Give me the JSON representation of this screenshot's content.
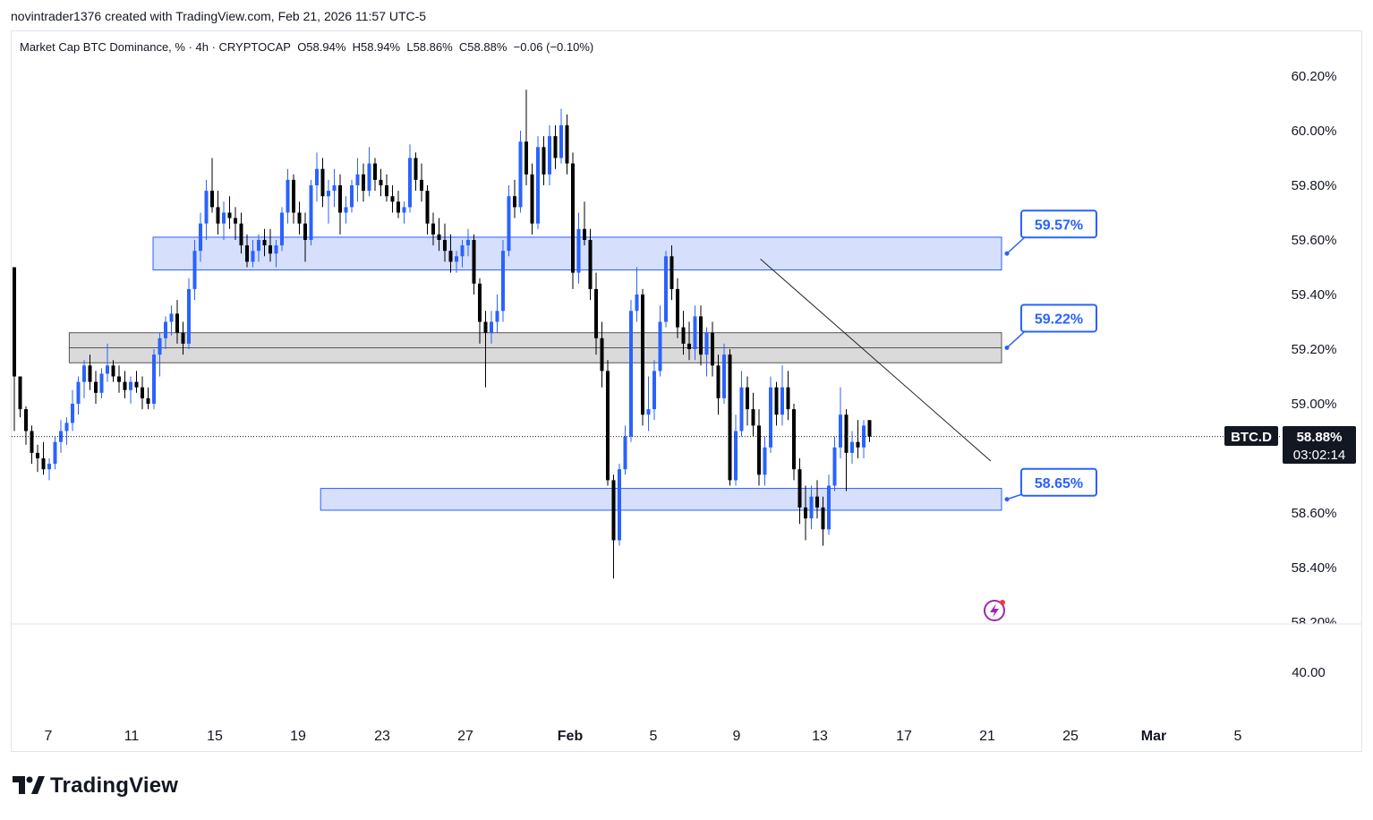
{
  "header": {
    "text": "novintrader1376 created with TradingView.com, Feb 21, 2026 11:57 UTC-5"
  },
  "legend": {
    "title": "Market Cap BTC Dominance, % · 4h · CRYPTOCAP",
    "open": "O58.94%",
    "high": "H58.94%",
    "low": "L58.86%",
    "close": "C58.88%",
    "change": "−0.06 (−0.10%)"
  },
  "footer": {
    "logo_text": "TradingView"
  },
  "colors": {
    "up": "#2962ff",
    "down": "#000000",
    "zone_blue": "#d1dcfb",
    "zone_blue_border": "#2962ff",
    "zone_gray": "#d6d6d6",
    "callout": "#2962ff"
  },
  "chart_data": {
    "type": "candlestick",
    "symbol": "BTC.D",
    "last_price_label": "58.88%",
    "countdown_label": "03:02:14",
    "y_ticks": [
      "60.20%",
      "60.00%",
      "59.80%",
      "59.60%",
      "59.40%",
      "59.20%",
      "59.00%",
      "58.80%",
      "58.60%",
      "58.40%",
      "58.20%"
    ],
    "y_values": [
      60.2,
      60.0,
      59.8,
      59.6,
      59.4,
      59.2,
      59.0,
      58.8,
      58.6,
      58.4,
      58.2
    ],
    "ylim": [
      58.2,
      60.2
    ],
    "x_ticks": [
      "7",
      "11",
      "15",
      "19",
      "23",
      "27",
      "Feb",
      "5",
      "9",
      "13",
      "17",
      "21",
      "25",
      "Mar",
      "5"
    ],
    "lower_pane_label": "40.00",
    "zones": [
      {
        "label": "59.57%",
        "low": 59.49,
        "high": 59.61,
        "from": "Jan 12",
        "to": "Feb 21",
        "color": "blue"
      },
      {
        "label": "59.22%",
        "low": 59.15,
        "high": 59.26,
        "from": "Jan 8",
        "to": "Feb 21",
        "color": "gray"
      },
      {
        "label": "58.65%",
        "low": 58.61,
        "high": 58.69,
        "from": "Jan 20",
        "to": "Feb 21",
        "color": "blue"
      }
    ],
    "trendline": {
      "from_date": "Feb 10",
      "from_value": 59.53,
      "to_date": "Feb 21",
      "to_value": 58.79
    },
    "candles": [
      [
        59.5,
        59.5,
        58.9,
        59.1
      ],
      [
        59.1,
        59.1,
        58.95,
        58.98
      ],
      [
        58.98,
        58.99,
        58.85,
        58.9
      ],
      [
        58.9,
        58.92,
        58.78,
        58.82
      ],
      [
        58.82,
        58.85,
        58.75,
        58.8
      ],
      [
        58.8,
        58.86,
        58.74,
        58.76
      ],
      [
        58.76,
        58.8,
        58.72,
        58.78
      ],
      [
        58.78,
        58.88,
        58.76,
        58.86
      ],
      [
        58.86,
        58.94,
        58.82,
        58.9
      ],
      [
        58.9,
        58.95,
        58.85,
        58.93
      ],
      [
        58.93,
        59.05,
        58.9,
        59.0
      ],
      [
        59.0,
        59.1,
        58.96,
        59.08
      ],
      [
        59.08,
        59.16,
        59.02,
        59.14
      ],
      [
        59.14,
        59.18,
        59.05,
        59.08
      ],
      [
        59.08,
        59.12,
        59.0,
        59.04
      ],
      [
        59.04,
        59.13,
        59.02,
        59.11
      ],
      [
        59.11,
        59.22,
        59.08,
        59.14
      ],
      [
        59.14,
        59.16,
        59.08,
        59.1
      ],
      [
        59.1,
        59.14,
        59.04,
        59.08
      ],
      [
        59.08,
        59.12,
        59.02,
        59.05
      ],
      [
        59.05,
        59.1,
        59.0,
        59.08
      ],
      [
        59.08,
        59.12,
        59.04,
        59.06
      ],
      [
        59.06,
        59.1,
        58.98,
        59.02
      ],
      [
        59.02,
        59.06,
        58.98,
        59.0
      ],
      [
        59.0,
        59.2,
        58.98,
        59.18
      ],
      [
        59.18,
        59.26,
        59.1,
        59.24
      ],
      [
        59.24,
        59.32,
        59.2,
        59.3
      ],
      [
        59.3,
        59.36,
        59.25,
        59.33
      ],
      [
        59.33,
        59.38,
        59.22,
        59.26
      ],
      [
        59.26,
        59.3,
        59.18,
        59.22
      ],
      [
        59.22,
        59.46,
        59.2,
        59.42
      ],
      [
        59.42,
        59.6,
        59.38,
        59.56
      ],
      [
        59.56,
        59.7,
        59.52,
        59.66
      ],
      [
        59.66,
        59.82,
        59.6,
        59.78
      ],
      [
        59.78,
        59.9,
        59.7,
        59.72
      ],
      [
        59.72,
        59.78,
        59.62,
        59.66
      ],
      [
        59.66,
        59.74,
        59.6,
        59.7
      ],
      [
        59.7,
        59.76,
        59.64,
        59.68
      ],
      [
        59.68,
        59.72,
        59.6,
        59.66
      ],
      [
        59.66,
        59.7,
        59.55,
        59.58
      ],
      [
        59.58,
        59.62,
        59.5,
        59.52
      ],
      [
        59.52,
        59.6,
        59.5,
        59.56
      ],
      [
        59.56,
        59.62,
        59.52,
        59.6
      ],
      [
        59.6,
        59.64,
        59.54,
        59.58
      ],
      [
        59.58,
        59.64,
        59.52,
        59.55
      ],
      [
        59.55,
        59.6,
        59.5,
        59.58
      ],
      [
        59.58,
        59.72,
        59.56,
        59.7
      ],
      [
        59.7,
        59.86,
        59.66,
        59.82
      ],
      [
        59.82,
        59.84,
        59.66,
        59.7
      ],
      [
        59.7,
        59.74,
        59.62,
        59.66
      ],
      [
        59.66,
        59.7,
        59.52,
        59.6
      ],
      [
        59.6,
        59.82,
        59.58,
        59.8
      ],
      [
        59.8,
        59.92,
        59.74,
        59.86
      ],
      [
        59.86,
        59.9,
        59.72,
        59.76
      ],
      [
        59.76,
        59.82,
        59.66,
        59.78
      ],
      [
        59.78,
        59.86,
        59.72,
        59.8
      ],
      [
        59.8,
        59.84,
        59.62,
        59.7
      ],
      [
        59.7,
        59.76,
        59.66,
        59.72
      ],
      [
        59.72,
        59.82,
        59.7,
        59.8
      ],
      [
        59.8,
        59.9,
        59.74,
        59.84
      ],
      [
        59.84,
        59.88,
        59.74,
        59.78
      ],
      [
        59.78,
        59.94,
        59.76,
        59.88
      ],
      [
        59.88,
        59.9,
        59.78,
        59.82
      ],
      [
        59.82,
        59.86,
        59.76,
        59.8
      ],
      [
        59.8,
        59.84,
        59.74,
        59.76
      ],
      [
        59.76,
        59.8,
        59.7,
        59.74
      ],
      [
        59.74,
        59.78,
        59.68,
        59.7
      ],
      [
        59.7,
        59.74,
        59.66,
        59.72
      ],
      [
        59.72,
        59.95,
        59.7,
        59.9
      ],
      [
        59.9,
        59.92,
        59.78,
        59.82
      ],
      [
        59.82,
        59.88,
        59.74,
        59.78
      ],
      [
        59.78,
        59.8,
        59.62,
        59.66
      ],
      [
        59.66,
        59.7,
        59.58,
        59.62
      ],
      [
        59.62,
        59.68,
        59.56,
        59.6
      ],
      [
        59.6,
        59.66,
        59.52,
        59.56
      ],
      [
        59.56,
        59.62,
        59.48,
        59.52
      ],
      [
        59.52,
        59.56,
        59.48,
        59.54
      ],
      [
        59.54,
        59.6,
        59.5,
        59.58
      ],
      [
        59.58,
        59.64,
        59.54,
        59.6
      ],
      [
        59.6,
        59.62,
        59.4,
        59.44
      ],
      [
        59.44,
        59.46,
        59.22,
        59.3
      ],
      [
        59.3,
        59.34,
        59.06,
        59.26
      ],
      [
        59.26,
        59.34,
        59.22,
        59.3
      ],
      [
        59.3,
        59.4,
        59.26,
        59.34
      ],
      [
        59.34,
        59.6,
        59.3,
        59.56
      ],
      [
        59.56,
        59.8,
        59.54,
        59.76
      ],
      [
        59.76,
        59.82,
        59.68,
        59.72
      ],
      [
        59.72,
        60.0,
        59.7,
        59.96
      ],
      [
        59.96,
        60.15,
        59.8,
        59.84
      ],
      [
        59.84,
        59.88,
        59.62,
        59.66
      ],
      [
        59.66,
        59.98,
        59.64,
        59.94
      ],
      [
        59.94,
        59.98,
        59.8,
        59.84
      ],
      [
        59.84,
        60.02,
        59.8,
        59.98
      ],
      [
        59.98,
        60.02,
        59.86,
        59.9
      ],
      [
        59.9,
        60.08,
        59.88,
        60.02
      ],
      [
        60.02,
        60.06,
        59.84,
        59.88
      ],
      [
        59.88,
        59.92,
        59.42,
        59.48
      ],
      [
        59.48,
        59.7,
        59.44,
        59.64
      ],
      [
        59.64,
        59.74,
        59.58,
        59.6
      ],
      [
        59.6,
        59.64,
        59.38,
        59.42
      ],
      [
        59.42,
        59.48,
        59.18,
        59.24
      ],
      [
        59.24,
        59.3,
        59.06,
        59.12
      ],
      [
        59.12,
        59.16,
        58.7,
        58.72
      ],
      [
        58.72,
        58.74,
        58.36,
        58.5
      ],
      [
        58.5,
        58.78,
        58.48,
        58.76
      ],
      [
        58.76,
        58.92,
        58.74,
        58.88
      ],
      [
        58.88,
        59.38,
        58.86,
        59.34
      ],
      [
        59.34,
        59.5,
        59.3,
        59.4
      ],
      [
        59.4,
        59.42,
        58.92,
        58.96
      ],
      [
        58.96,
        59.1,
        58.9,
        58.98
      ],
      [
        58.98,
        59.16,
        58.94,
        59.12
      ],
      [
        59.12,
        59.36,
        59.1,
        59.3
      ],
      [
        59.3,
        59.56,
        59.28,
        59.54
      ],
      [
        59.54,
        59.58,
        59.38,
        59.42
      ],
      [
        59.42,
        59.46,
        59.24,
        59.28
      ],
      [
        59.28,
        59.34,
        59.18,
        59.22
      ],
      [
        59.22,
        59.3,
        59.16,
        59.2
      ],
      [
        59.2,
        59.36,
        59.16,
        59.32
      ],
      [
        59.32,
        59.36,
        59.14,
        59.18
      ],
      [
        59.18,
        59.28,
        59.1,
        59.26
      ],
      [
        59.26,
        59.3,
        59.1,
        59.14
      ],
      [
        59.14,
        59.18,
        58.96,
        59.02
      ],
      [
        59.02,
        59.22,
        59.0,
        59.18
      ],
      [
        59.18,
        59.2,
        58.7,
        58.72
      ],
      [
        58.72,
        58.96,
        58.7,
        58.9
      ],
      [
        58.9,
        59.12,
        58.88,
        59.06
      ],
      [
        59.06,
        59.1,
        58.92,
        58.98
      ],
      [
        58.98,
        59.04,
        58.88,
        58.92
      ],
      [
        58.92,
        58.98,
        58.7,
        58.74
      ],
      [
        58.74,
        58.88,
        58.7,
        58.84
      ],
      [
        58.84,
        59.1,
        58.82,
        59.06
      ],
      [
        59.06,
        59.08,
        58.92,
        58.96
      ],
      [
        58.96,
        59.14,
        58.92,
        59.06
      ],
      [
        59.06,
        59.12,
        58.94,
        58.98
      ],
      [
        58.98,
        59.0,
        58.72,
        58.76
      ],
      [
        58.76,
        58.8,
        58.56,
        58.62
      ],
      [
        58.62,
        58.7,
        58.5,
        58.58
      ],
      [
        58.58,
        58.7,
        58.54,
        58.66
      ],
      [
        58.66,
        58.72,
        58.58,
        58.62
      ],
      [
        58.62,
        58.66,
        58.48,
        58.54
      ],
      [
        58.54,
        58.74,
        58.52,
        58.7
      ],
      [
        58.7,
        58.88,
        58.68,
        58.84
      ],
      [
        58.84,
        59.06,
        58.8,
        58.96
      ],
      [
        58.96,
        58.98,
        58.68,
        58.82
      ],
      [
        58.82,
        58.9,
        58.78,
        58.86
      ],
      [
        58.86,
        58.94,
        58.8,
        58.84
      ],
      [
        58.84,
        58.94,
        58.8,
        58.92
      ],
      [
        58.94,
        58.94,
        58.86,
        58.88
      ]
    ]
  }
}
